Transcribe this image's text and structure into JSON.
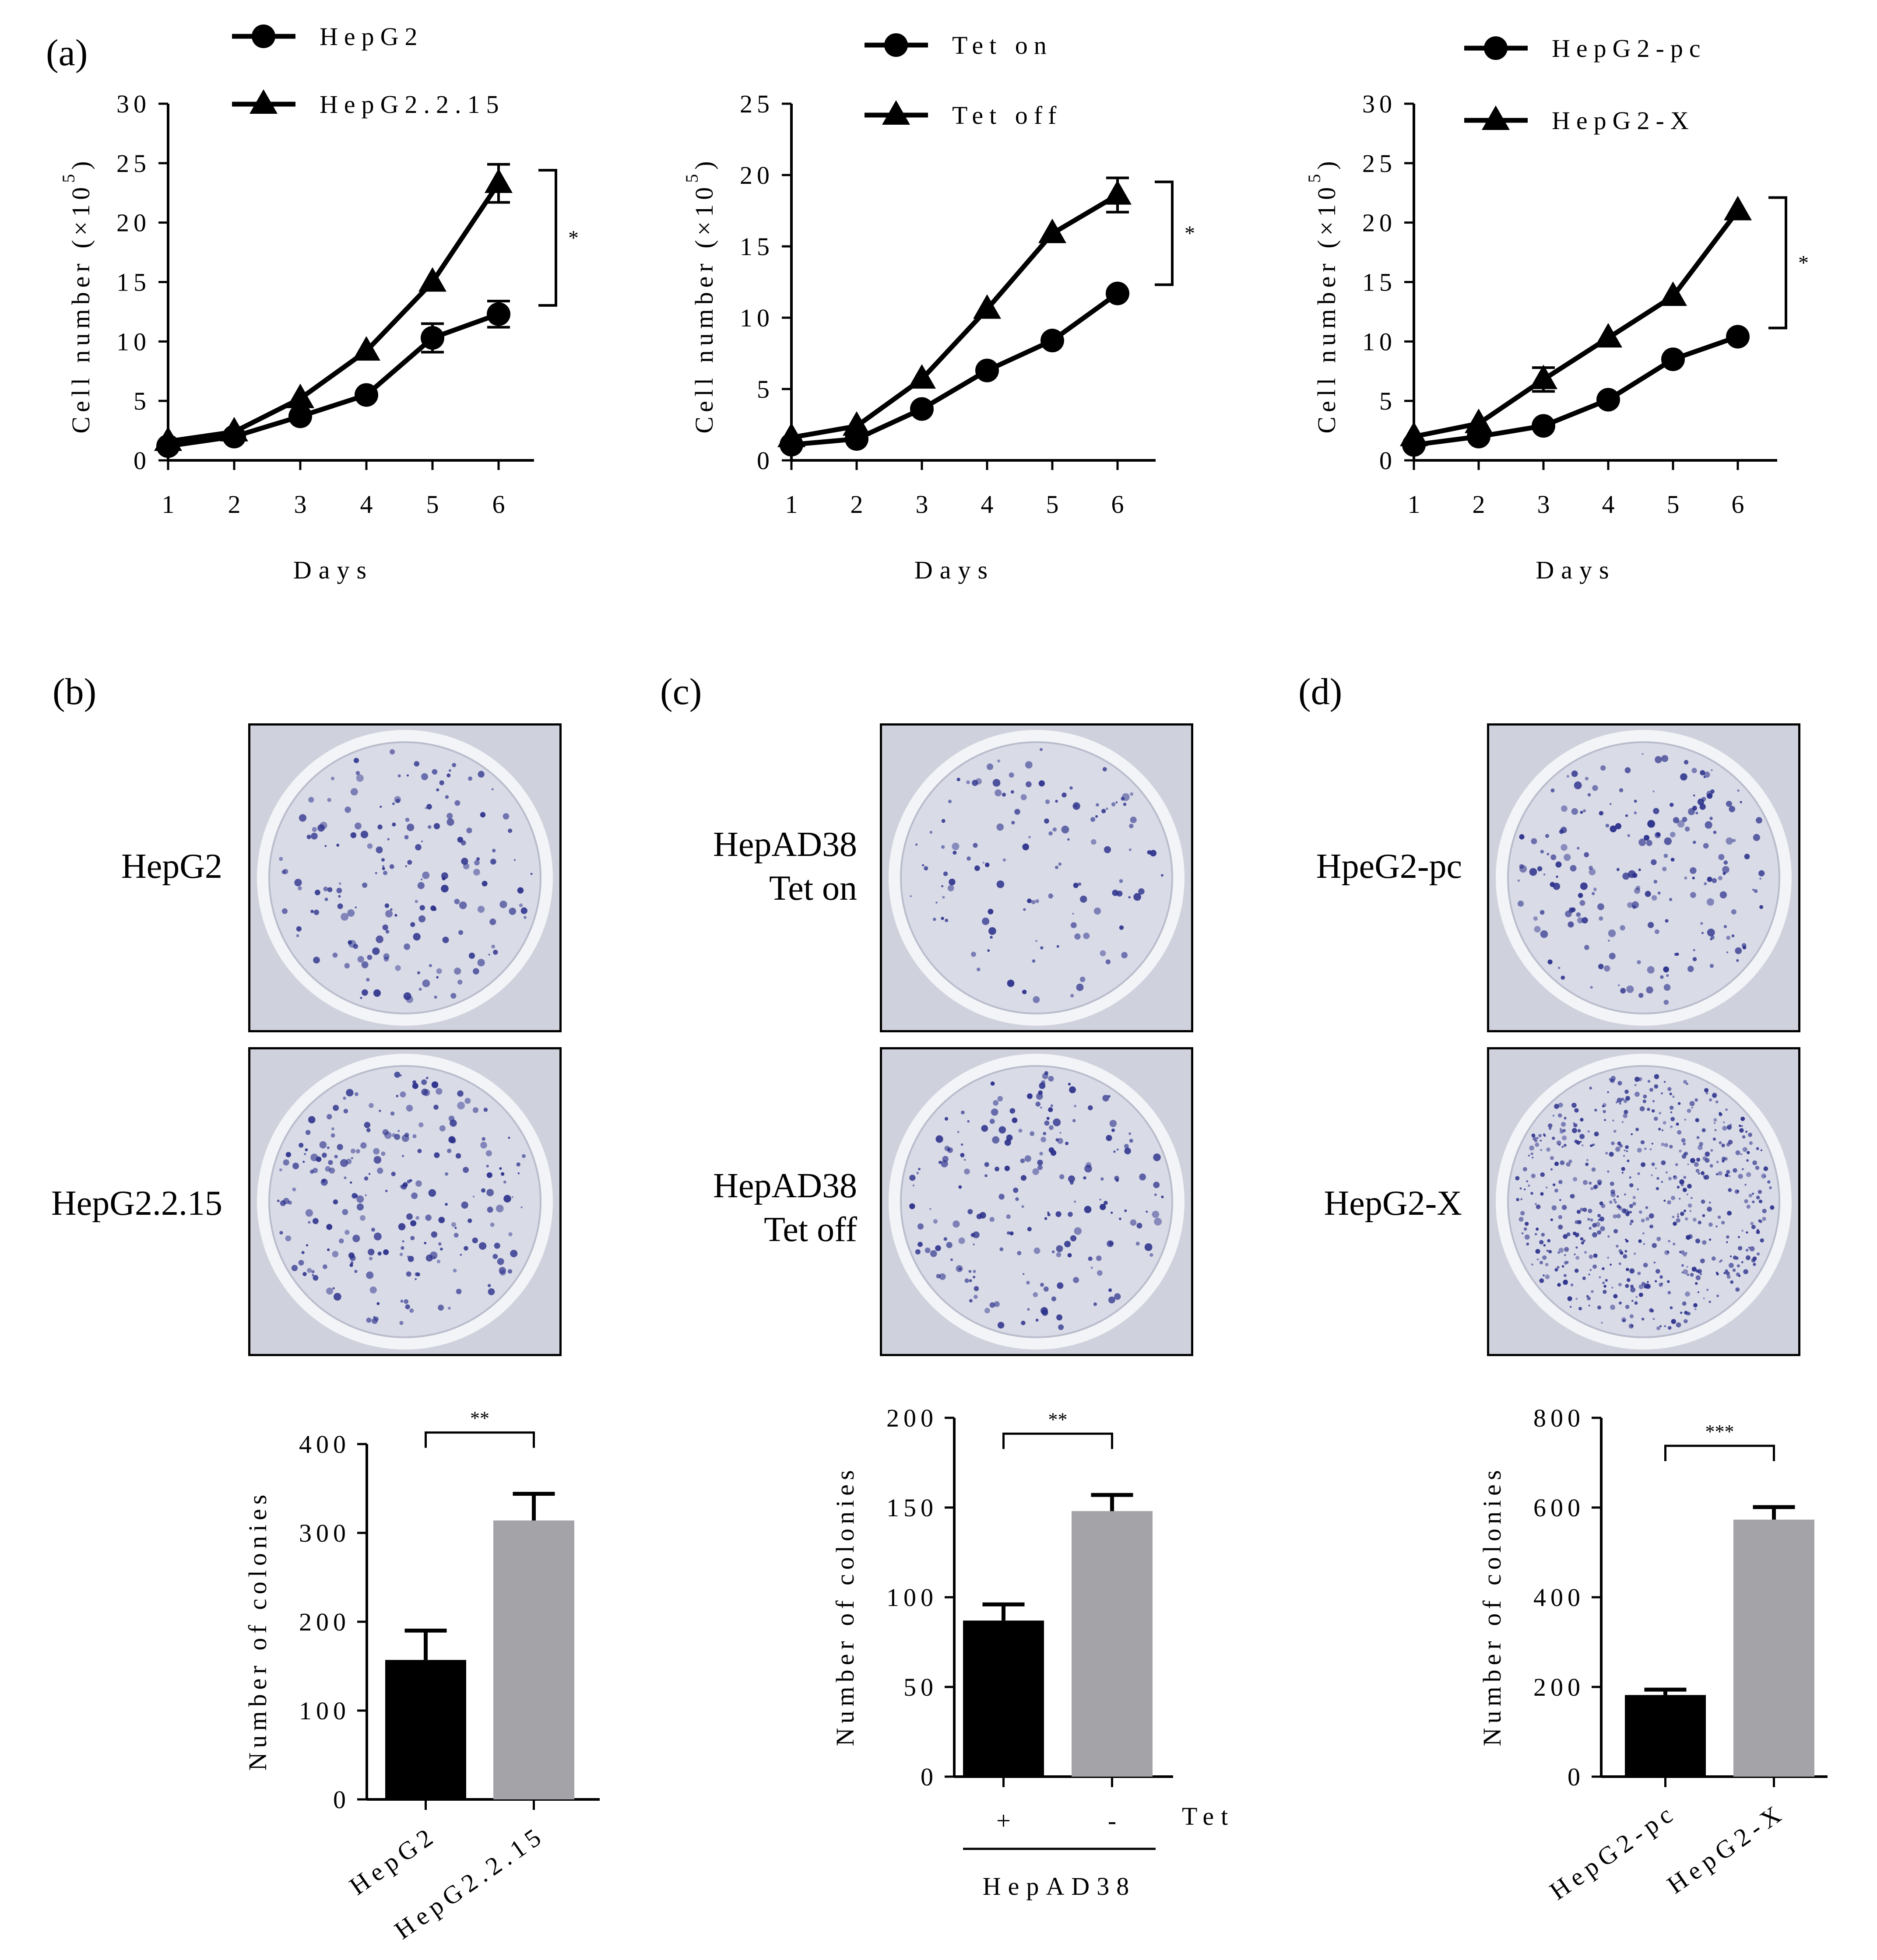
{
  "panels": {
    "a": "(a)",
    "b": "(b)",
    "c": "(c)",
    "d": "(d)"
  },
  "growth_axis": {
    "ylabel_main": "Cell number (×10",
    "ylabel_exp": "5",
    "ylabel_close": ")",
    "xlabel": "Days"
  },
  "colony_axis": {
    "ylabel": "Number of colonies"
  },
  "dishes": {
    "b": {
      "top": "HepG2",
      "bottom": "HepG2.2.15"
    },
    "c": {
      "top_line1": "HepAD38",
      "top_line2": "Tet on",
      "bottom_line1": "HepAD38",
      "bottom_line2": "Tet off"
    },
    "d": {
      "top": "HpeG2-pc",
      "bottom": "HepG2-X"
    }
  },
  "bar_c_extra": {
    "plus": "+",
    "minus": "-",
    "tet": "Tet",
    "group": "HepAD38"
  },
  "colors": {
    "black": "#000000",
    "gray": "#a3a3a8",
    "plate_bg": "#dcdee6",
    "colony": "#2a2f8a"
  },
  "chart_data": [
    {
      "id": "a1",
      "type": "line",
      "x": [
        1,
        2,
        3,
        4,
        5,
        6
      ],
      "xticks": [
        "1",
        "2",
        "3",
        "4",
        "5",
        "6"
      ],
      "ylim": [
        0,
        30
      ],
      "yticks": [
        0,
        5,
        10,
        15,
        20,
        25,
        30
      ],
      "xlabel": "Days",
      "ylabel": "Cell number (×10^5)",
      "series": [
        {
          "name": "HepG2",
          "marker": "circle",
          "values": [
            1.2,
            2.0,
            3.7,
            5.5,
            10.3,
            12.3
          ],
          "err": [
            0,
            0,
            0,
            0,
            1.2,
            1.1
          ]
        },
        {
          "name": "HepG2.2.15",
          "marker": "triangle",
          "values": [
            1.6,
            2.4,
            5.2,
            9.2,
            15.0,
            23.3
          ],
          "err": [
            0,
            0,
            0,
            0,
            0,
            1.6
          ]
        }
      ],
      "significance": "*"
    },
    {
      "id": "a2",
      "type": "line",
      "x": [
        1,
        2,
        3,
        4,
        5,
        6
      ],
      "xticks": [
        "1",
        "2",
        "3",
        "4",
        "5",
        "6"
      ],
      "ylim": [
        0,
        25
      ],
      "yticks": [
        0,
        5,
        10,
        15,
        20,
        25
      ],
      "xlabel": "Days",
      "ylabel": "Cell number (×10^5)",
      "series": [
        {
          "name": "Tet on",
          "marker": "circle",
          "values": [
            1.1,
            1.5,
            3.6,
            6.3,
            8.4,
            11.7
          ],
          "err": [
            0,
            0,
            0,
            0,
            0,
            0
          ]
        },
        {
          "name": "Tet off",
          "marker": "triangle",
          "values": [
            1.6,
            2.4,
            5.7,
            10.6,
            15.9,
            18.6
          ],
          "err": [
            0,
            0,
            0,
            0,
            0,
            1.2
          ]
        }
      ],
      "significance": "*"
    },
    {
      "id": "a3",
      "type": "line",
      "x": [
        1,
        2,
        3,
        4,
        5,
        6
      ],
      "xticks": [
        "1",
        "2",
        "3",
        "4",
        "5",
        "6"
      ],
      "ylim": [
        0,
        30
      ],
      "yticks": [
        0,
        5,
        10,
        15,
        20,
        25,
        30
      ],
      "xlabel": "Days",
      "ylabel": "Cell number (×10^5)",
      "series": [
        {
          "name": "HepG2-pc",
          "marker": "circle",
          "values": [
            1.3,
            2.0,
            2.9,
            5.1,
            8.5,
            10.4
          ],
          "err": [
            0,
            0,
            0,
            0,
            0,
            0
          ]
        },
        {
          "name": "HepG2-X",
          "marker": "triangle",
          "values": [
            2.0,
            3.1,
            6.8,
            10.3,
            13.8,
            21.0
          ],
          "err": [
            0,
            0,
            1.0,
            0,
            0,
            0
          ]
        }
      ],
      "significance": "*"
    },
    {
      "id": "b",
      "type": "bar",
      "categories": [
        "HepG2",
        "HepG2.2.15"
      ],
      "values": [
        157,
        314
      ],
      "err": [
        33,
        30
      ],
      "colors": [
        "#000000",
        "#a3a3a8"
      ],
      "ylim": [
        0,
        400
      ],
      "yticks": [
        0,
        100,
        200,
        300,
        400
      ],
      "ylabel": "Number of colonies",
      "significance": "**"
    },
    {
      "id": "c",
      "type": "bar",
      "categories": [
        "+",
        "-"
      ],
      "values": [
        87,
        148
      ],
      "err": [
        9,
        9
      ],
      "colors": [
        "#000000",
        "#a3a3a8"
      ],
      "ylim": [
        0,
        200
      ],
      "yticks": [
        0,
        50,
        100,
        150,
        200
      ],
      "ylabel": "Number of colonies",
      "significance": "**"
    },
    {
      "id": "d",
      "type": "bar",
      "categories": [
        "HepG2-pc",
        "HepG2-X"
      ],
      "values": [
        182,
        573
      ],
      "err": [
        12,
        28
      ],
      "colors": [
        "#000000",
        "#a3a3a8"
      ],
      "ylim": [
        0,
        800
      ],
      "yticks": [
        0,
        200,
        400,
        600,
        800
      ],
      "ylabel": "Number of colonies",
      "significance": "***"
    }
  ]
}
